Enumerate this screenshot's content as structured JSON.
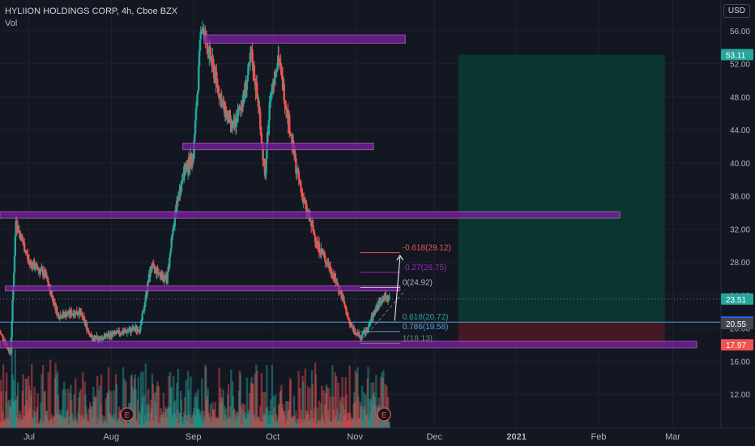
{
  "header": {
    "title": "HYLIION HOLDINGS CORP, 4h, Cboe BZX",
    "indicator": "Vol",
    "currency_button": "USD"
  },
  "colors": {
    "background": "#131722",
    "up": "#26a69a",
    "down": "#ef5350",
    "zone_fill": "#7b1fa2",
    "zone_border": "#ba68c8",
    "fib_line": "#5b9bd5",
    "text": "#d1d4dc",
    "reward_fill": "#0b3b31",
    "risk_fill": "#4a1a23"
  },
  "chart_data": {
    "type": "candlestick",
    "title": "HYLIION HOLDINGS CORP, 4h, Cboe BZX",
    "y_axis": {
      "ticks": [
        12.0,
        16.0,
        20.0,
        24.0,
        28.0,
        32.0,
        36.0,
        40.0,
        44.0,
        48.0,
        52.0,
        56.0
      ],
      "tick_labels": [
        "12.00",
        "16.00",
        "20.00",
        "24.00",
        "28.00",
        "32.00",
        "36.00",
        "40.00",
        "44.00",
        "48.00",
        "52.00",
        "56.00"
      ],
      "range": [
        9.4,
        59.0
      ]
    },
    "x_axis": {
      "labels": [
        "Jul",
        "Aug",
        "Sep",
        "Oct",
        "Nov",
        "Dec",
        "2021",
        "Feb",
        "Mar"
      ],
      "dates": [
        "2020-07-01",
        "2020-08-01",
        "2020-09-01",
        "2020-10-01",
        "2020-11-01",
        "2020-12-01",
        "2021-01-01",
        "2021-02-01",
        "2021-03-01"
      ],
      "range": [
        "2020-06-20",
        "2021-03-10"
      ],
      "bold": [
        "2021"
      ]
    },
    "price_path": [
      {
        "date": "2020-06-20",
        "price": 19.5
      },
      {
        "date": "2020-06-24",
        "price": 17.0
      },
      {
        "date": "2020-06-26",
        "price": 33.0
      },
      {
        "date": "2020-07-01",
        "price": 28.0
      },
      {
        "date": "2020-07-07",
        "price": 26.5
      },
      {
        "date": "2020-07-12",
        "price": 21.5
      },
      {
        "date": "2020-07-20",
        "price": 22.0
      },
      {
        "date": "2020-07-25",
        "price": 18.6
      },
      {
        "date": "2020-08-05",
        "price": 19.5
      },
      {
        "date": "2020-08-12",
        "price": 20.0
      },
      {
        "date": "2020-08-16",
        "price": 27.5
      },
      {
        "date": "2020-08-22",
        "price": 25.8
      },
      {
        "date": "2020-08-25",
        "price": 33.5
      },
      {
        "date": "2020-08-28",
        "price": 38.5
      },
      {
        "date": "2020-09-01",
        "price": 41.0
      },
      {
        "date": "2020-09-03",
        "price": 51.0
      },
      {
        "date": "2020-09-04",
        "price": 57.0
      },
      {
        "date": "2020-09-08",
        "price": 52.0
      },
      {
        "date": "2020-09-12",
        "price": 47.0
      },
      {
        "date": "2020-09-16",
        "price": 44.0
      },
      {
        "date": "2020-09-20",
        "price": 48.0
      },
      {
        "date": "2020-09-23",
        "price": 53.0
      },
      {
        "date": "2020-09-26",
        "price": 46.0
      },
      {
        "date": "2020-09-28",
        "price": 38.0
      },
      {
        "date": "2020-09-30",
        "price": 48.0
      },
      {
        "date": "2020-10-03",
        "price": 53.0
      },
      {
        "date": "2020-10-07",
        "price": 45.0
      },
      {
        "date": "2020-10-10",
        "price": 39.0
      },
      {
        "date": "2020-10-13",
        "price": 35.0
      },
      {
        "date": "2020-10-18",
        "price": 30.0
      },
      {
        "date": "2020-10-23",
        "price": 27.0
      },
      {
        "date": "2020-10-27",
        "price": 24.0
      },
      {
        "date": "2020-10-30",
        "price": 20.5
      },
      {
        "date": "2020-11-03",
        "price": 18.8
      },
      {
        "date": "2020-11-06",
        "price": 20.0
      },
      {
        "date": "2020-11-09",
        "price": 22.5
      },
      {
        "date": "2020-11-12",
        "price": 23.8
      },
      {
        "date": "2020-11-14",
        "price": 23.51
      }
    ],
    "price_labels": [
      {
        "value": 53.11,
        "label": "53.11",
        "bg": "#26a69a"
      },
      {
        "value": 23.51,
        "label": "23.51",
        "bg": "#26a69a"
      },
      {
        "value": 20.72,
        "label": "20.72",
        "bg": "#2962ff"
      },
      {
        "value": 20.55,
        "label": "20.55",
        "bg": "#434651"
      },
      {
        "value": 17.97,
        "label": "17.97",
        "bg": "#ef5350"
      }
    ],
    "zones": [
      {
        "start": "2020-09-05",
        "end": "2020-11-20",
        "low": 54.5,
        "high": 55.5
      },
      {
        "start": "2020-08-28",
        "end": "2020-11-08",
        "low": 41.6,
        "high": 42.4
      },
      {
        "start": "2020-06-20",
        "end": "2021-02-09",
        "low": 33.3,
        "high": 34.1
      },
      {
        "start": "2020-06-22",
        "end": "2020-11-18",
        "low": 24.5,
        "high": 25.1
      },
      {
        "start": "2020-06-20",
        "end": "2021-03-10",
        "low": 17.6,
        "high": 18.4
      }
    ],
    "fib_levels": [
      {
        "ratio": "-0.618",
        "value": 29.12,
        "label": "-0.618(29.12)",
        "color": "#ef5350"
      },
      {
        "ratio": "-0.27",
        "value": 26.75,
        "label": "-0.27(26.75)",
        "color": "#9c27b0"
      },
      {
        "ratio": "0",
        "value": 24.92,
        "label": "0(24.92)",
        "color": "#b2b5be"
      },
      {
        "ratio": "0.618",
        "value": 20.72,
        "label": "0.618(20.72)",
        "color": "#26a69a"
      },
      {
        "ratio": "0.786",
        "value": 19.58,
        "label": "0.786(19.58)",
        "color": "#5b9bd5"
      },
      {
        "ratio": "1",
        "value": 18.13,
        "label": "1(18.13)",
        "color": "#787b86"
      }
    ],
    "fib_range": {
      "start": "2020-11-03",
      "end": "2020-11-18"
    },
    "position": {
      "start": "2020-12-10",
      "end": "2021-02-26",
      "target": 53.11,
      "entry": 20.72,
      "stop": 17.97
    },
    "earnings_markers": [
      {
        "date": "2020-08-07",
        "label": "E"
      },
      {
        "date": "2020-11-12",
        "label": "E"
      }
    ]
  }
}
